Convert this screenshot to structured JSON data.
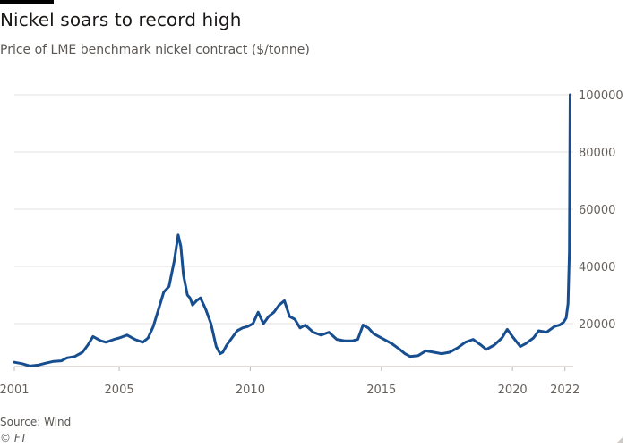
{
  "header": {
    "title": "Nickel soars to record high",
    "subtitle": "Price of LME benchmark nickel contract ($/tonne)"
  },
  "footer": {
    "source": "Source: Wind",
    "copyright": "© FT"
  },
  "colors": {
    "line": "#174e8f",
    "grid": "#e6e2de",
    "text": "#66605c"
  },
  "chart_data": {
    "type": "line",
    "title": "Nickel soars to record high",
    "subtitle": "Price of LME benchmark nickel contract ($/tonne)",
    "xlabel": "",
    "ylabel": "",
    "xlim": [
      2001.0,
      2022.25
    ],
    "ylim": [
      5000,
      100000
    ],
    "grid": true,
    "y_axis_side": "right",
    "x_ticks": [
      {
        "value": 2001,
        "label": "2001"
      },
      {
        "value": 2005,
        "label": "2005"
      },
      {
        "value": 2010,
        "label": "2010"
      },
      {
        "value": 2015,
        "label": "2015"
      },
      {
        "value": 2020,
        "label": "2020"
      },
      {
        "value": 2022,
        "label": "2022"
      }
    ],
    "y_ticks": [
      20000,
      40000,
      60000,
      80000,
      100000
    ],
    "series": [
      {
        "x": [
          2001.0,
          2001.3,
          2001.6,
          2001.9,
          2002.2,
          2002.5,
          2002.8,
          2003.0,
          2003.3,
          2003.6,
          2003.8,
          2004.0,
          2004.3,
          2004.5,
          2004.8,
          2005.0,
          2005.3,
          2005.6,
          2005.9,
          2006.1,
          2006.3,
          2006.5,
          2006.7,
          2006.9,
          2007.1,
          2007.25,
          2007.35,
          2007.45,
          2007.6,
          2007.7,
          2007.8,
          2007.95,
          2008.1,
          2008.3,
          2008.5,
          2008.7,
          2008.85,
          2008.95,
          2009.1,
          2009.3,
          2009.5,
          2009.7,
          2009.9,
          2010.1,
          2010.3,
          2010.5,
          2010.7,
          2010.9,
          2011.1,
          2011.3,
          2011.5,
          2011.7,
          2011.9,
          2012.1,
          2012.4,
          2012.7,
          2013.0,
          2013.3,
          2013.6,
          2013.9,
          2014.1,
          2014.3,
          2014.5,
          2014.7,
          2014.9,
          2015.1,
          2015.4,
          2015.7,
          2015.9,
          2016.1,
          2016.4,
          2016.7,
          2017.0,
          2017.3,
          2017.6,
          2017.9,
          2018.2,
          2018.5,
          2018.8,
          2019.0,
          2019.3,
          2019.6,
          2019.8,
          2020.0,
          2020.3,
          2020.5,
          2020.8,
          2021.0,
          2021.3,
          2021.6,
          2021.8,
          2021.95,
          2022.05,
          2022.12,
          2022.17,
          2022.19,
          2022.2
        ],
        "values": [
          6500,
          6000,
          5200,
          5500,
          6200,
          6800,
          7000,
          8000,
          8500,
          10000,
          12500,
          15500,
          14000,
          13500,
          14500,
          15000,
          16000,
          14500,
          13500,
          15000,
          19000,
          25000,
          31000,
          33000,
          42000,
          51000,
          47000,
          37000,
          30000,
          29000,
          26500,
          28000,
          29000,
          25000,
          20000,
          12000,
          9500,
          10000,
          12500,
          15000,
          17500,
          18500,
          19000,
          20000,
          24000,
          20000,
          22500,
          24000,
          26500,
          28000,
          22500,
          21500,
          18500,
          19500,
          17000,
          16000,
          17000,
          14500,
          14000,
          14000,
          14500,
          19500,
          18500,
          16500,
          15500,
          14500,
          13000,
          11000,
          9500,
          8500,
          8800,
          10500,
          10000,
          9500,
          10000,
          11500,
          13500,
          14500,
          12500,
          11000,
          12500,
          15000,
          18000,
          15500,
          12000,
          13000,
          15000,
          17500,
          17000,
          19000,
          19500,
          20500,
          22000,
          27000,
          45000,
          80000,
          100000
        ]
      }
    ]
  }
}
